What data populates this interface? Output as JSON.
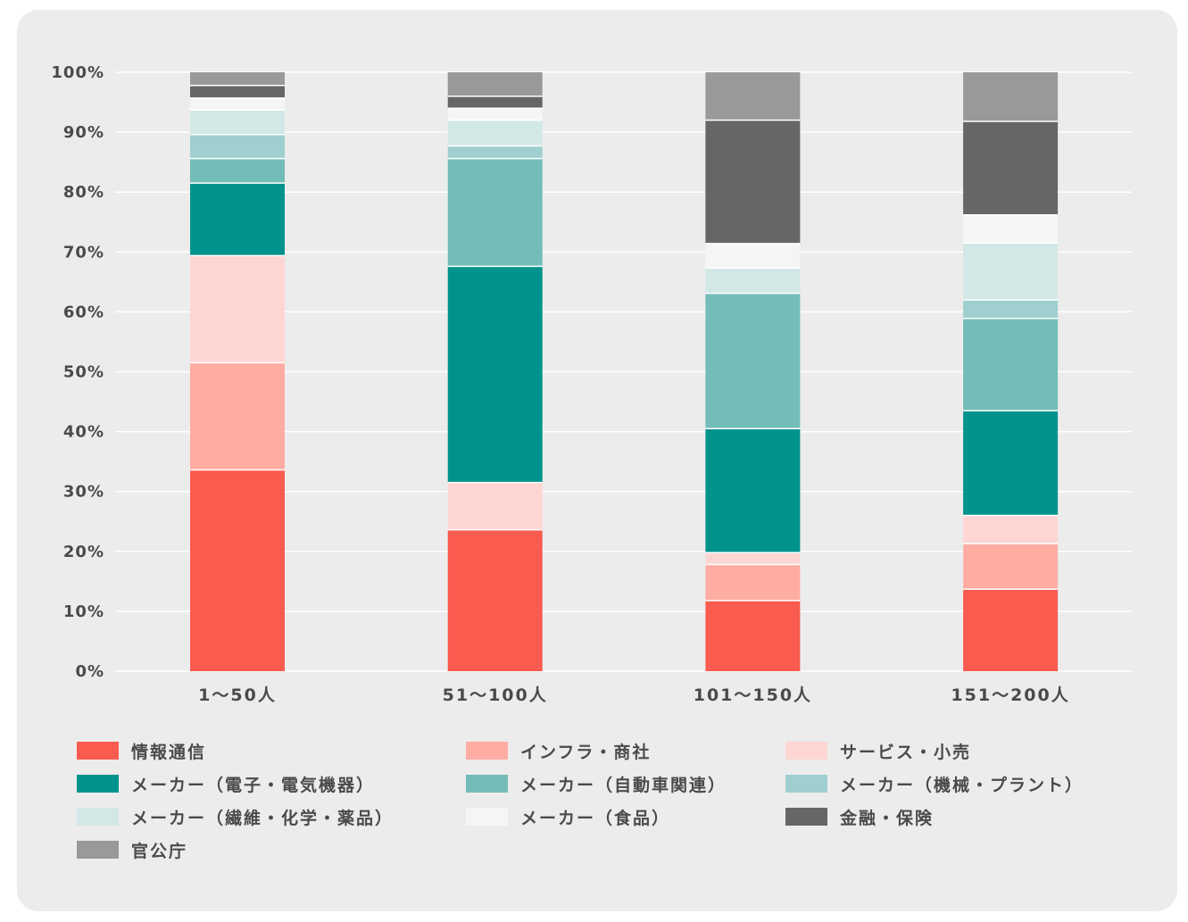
{
  "chart_data": {
    "type": "bar",
    "stacked": true,
    "title": "",
    "xlabel": "",
    "ylabel": "",
    "ylim": [
      0,
      100
    ],
    "y_ticks": [
      "0%",
      "10%",
      "20%",
      "30%",
      "40%",
      "50%",
      "60%",
      "70%",
      "80%",
      "90%",
      "100%"
    ],
    "grid": true,
    "legend_position": "bottom",
    "categories": [
      "1〜50人",
      "51〜100人",
      "101〜150人",
      "151〜200人"
    ],
    "series": [
      {
        "name": "情報通信",
        "color": "#fa5b4f",
        "values": [
          33.6,
          23.6,
          11.8,
          13.7
        ]
      },
      {
        "name": "インフラ・商社",
        "color": "#ffaca3",
        "values": [
          17.9,
          0,
          6.0,
          7.6
        ]
      },
      {
        "name": "サービス・小売",
        "color": "#fdd6d4",
        "values": [
          17.9,
          7.9,
          2.0,
          4.7
        ]
      },
      {
        "name": "メーカー（電子・電気機器）",
        "color": "#00938d",
        "values": [
          12.1,
          36.1,
          20.7,
          17.5
        ]
      },
      {
        "name": "メーカー（自動車関連）",
        "color": "#74bcb8",
        "values": [
          4.1,
          18.0,
          22.6,
          15.4
        ]
      },
      {
        "name": "メーカー（機械・プラント）",
        "color": "#9fcfcf",
        "values": [
          4.0,
          2.1,
          0,
          3.1
        ]
      },
      {
        "name": "メーカー（繊維・化学・薬品）",
        "color": "#d2e8e6",
        "values": [
          4.1,
          4.3,
          4.2,
          9.5
        ]
      },
      {
        "name": "メーカー（食品）",
        "color": "#f4f6f5",
        "values": [
          2.0,
          2.0,
          4.1,
          4.7
        ]
      },
      {
        "name": "金融・保険",
        "color": "#666666",
        "values": [
          2.1,
          2.0,
          20.6,
          15.6
        ]
      },
      {
        "name": "官公庁",
        "color": "#999999",
        "values": [
          2.2,
          4.0,
          8.0,
          8.2
        ]
      }
    ]
  }
}
